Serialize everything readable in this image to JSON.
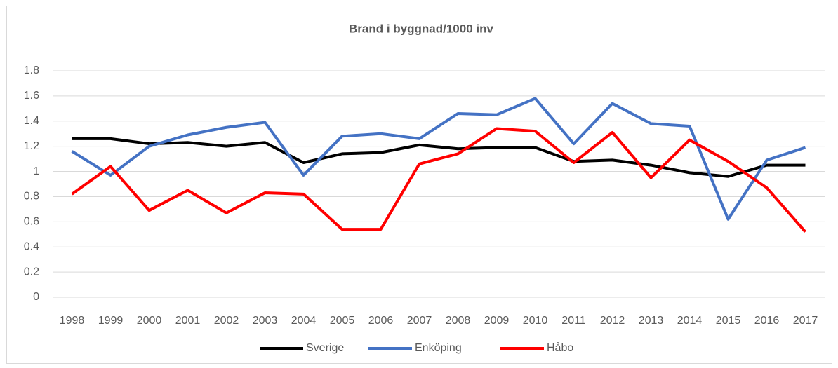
{
  "chart_data": {
    "type": "line",
    "title": "Brand i byggnad/1000 inv",
    "categories": [
      "1998",
      "1999",
      "2000",
      "2001",
      "2002",
      "2003",
      "2004",
      "2005",
      "2006",
      "2007",
      "2008",
      "2009",
      "2010",
      "2011",
      "2012",
      "2013",
      "2014",
      "2015",
      "2016",
      "2017"
    ],
    "series": [
      {
        "name": "Sverige",
        "color": "#000000",
        "values": [
          1.26,
          1.26,
          1.22,
          1.23,
          1.2,
          1.23,
          1.07,
          1.14,
          1.15,
          1.21,
          1.18,
          1.19,
          1.19,
          1.08,
          1.09,
          1.05,
          0.99,
          0.96,
          1.05,
          1.05
        ]
      },
      {
        "name": "Enköping",
        "color": "#4472c4",
        "values": [
          1.16,
          0.97,
          1.2,
          1.29,
          1.35,
          1.39,
          0.97,
          1.28,
          1.3,
          1.26,
          1.46,
          1.45,
          1.58,
          1.22,
          1.54,
          1.38,
          1.36,
          0.62,
          1.09,
          1.19
        ]
      },
      {
        "name": "Håbo",
        "color": "#ff0000",
        "values": [
          0.82,
          1.04,
          0.69,
          0.85,
          0.67,
          0.83,
          0.82,
          0.54,
          0.54,
          1.06,
          1.14,
          1.34,
          1.32,
          1.07,
          1.31,
          0.95,
          1.25,
          1.08,
          0.87,
          0.52
        ]
      }
    ],
    "ylim": [
      0,
      1.8
    ],
    "yticks": [
      0,
      0.2,
      0.4,
      0.6,
      0.8,
      1,
      1.2,
      1.4,
      1.6,
      1.8
    ],
    "grid": true,
    "legend": "bottom"
  }
}
